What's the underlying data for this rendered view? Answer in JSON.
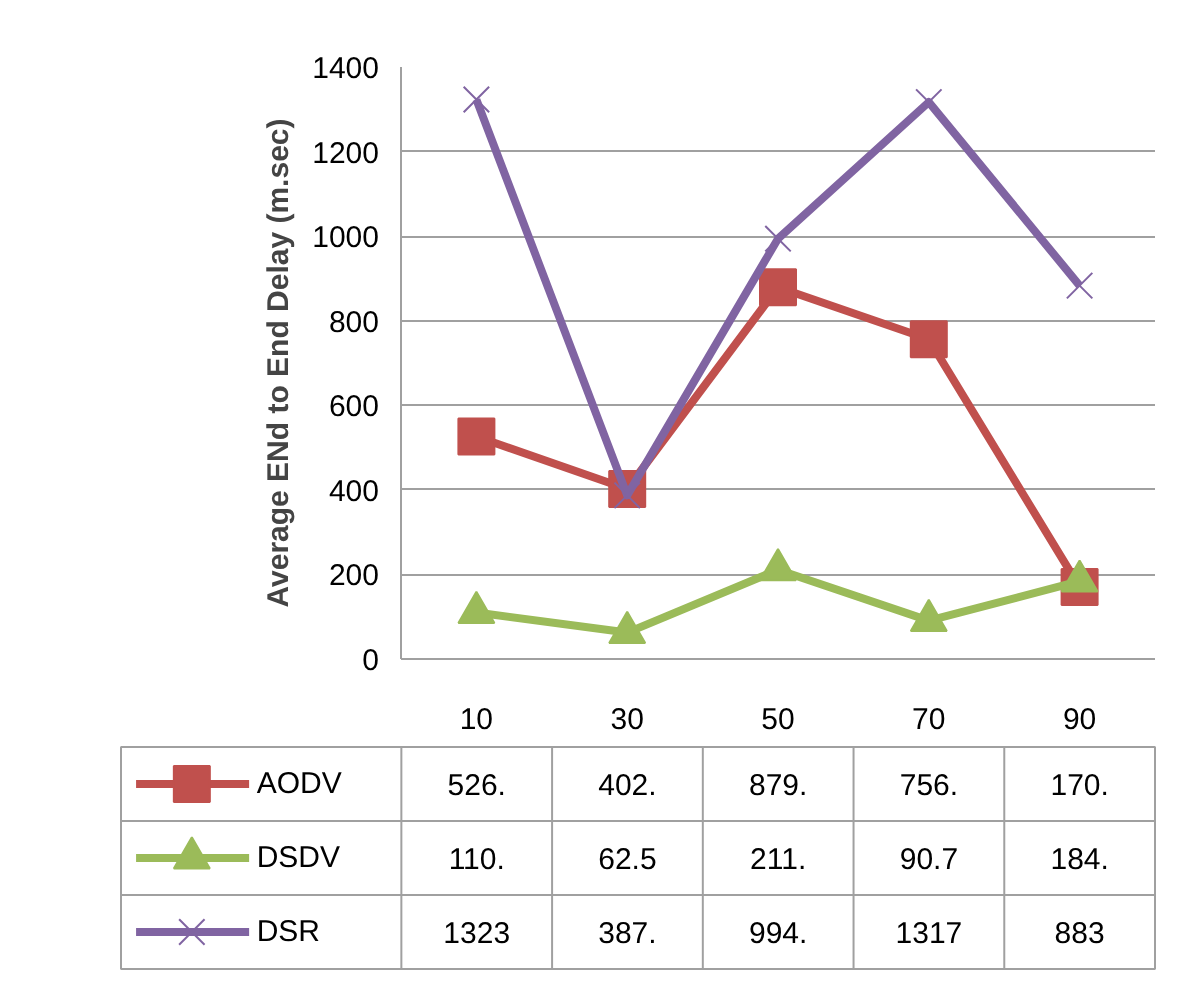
{
  "chart_data": {
    "type": "line",
    "ylabel": "Average ENd to End Delay (m.sec)",
    "categories": [
      "10",
      "30",
      "50",
      "70",
      "90"
    ],
    "ylim": [
      0,
      1400
    ],
    "yticks": [
      0,
      200,
      400,
      600,
      800,
      1000,
      1200,
      1400
    ],
    "grid": "y",
    "legend": "bottom left",
    "line_style": "solid",
    "series": [
      {
        "name": "AODV",
        "color": "#c0504d",
        "marker": "square",
        "values": [
          526,
          402,
          879,
          756,
          170
        ],
        "value_labels": [
          "526.",
          "402.",
          "879.",
          "756.",
          "170."
        ]
      },
      {
        "name": "DSDV",
        "color": "#9bbb59",
        "marker": "triangle",
        "values": [
          110,
          62.5,
          211,
          90.7,
          184
        ],
        "value_labels": [
          "110.",
          "62.5",
          "211.",
          "90.7",
          "184."
        ]
      },
      {
        "name": "DSR",
        "color": "#8064a2",
        "marker": "cross",
        "values": [
          1323,
          387,
          994,
          1317,
          883
        ],
        "value_labels": [
          "1323",
          "387.",
          "994.",
          "1317",
          "883"
        ]
      }
    ]
  }
}
